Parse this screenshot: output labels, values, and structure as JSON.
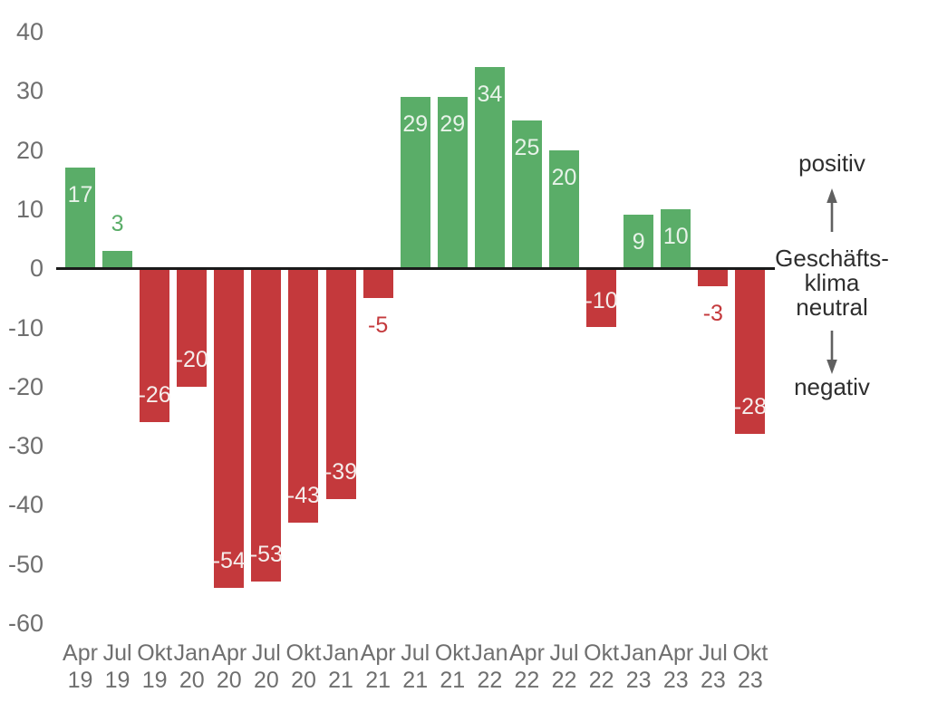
{
  "chart_data": {
    "type": "bar",
    "title": "",
    "xlabel": "",
    "ylabel": "",
    "categories": [
      "Apr 19",
      "Jul 19",
      "Okt 19",
      "Jan 20",
      "Apr 20",
      "Jul 20",
      "Okt 20",
      "Jan 21",
      "Apr 21",
      "Jul 21",
      "Okt 21",
      "Jan 22",
      "Apr 22",
      "Jul 22",
      "Okt 22",
      "Jan 23",
      "Apr 23",
      "Jul 23",
      "Okt 23"
    ],
    "values": [
      17,
      3,
      -26,
      -20,
      -54,
      -53,
      -43,
      -39,
      -5,
      29,
      29,
      34,
      25,
      20,
      -10,
      9,
      10,
      -3,
      -28
    ],
    "ylim": [
      -60,
      40
    ],
    "yticks": [
      40,
      30,
      20,
      10,
      0,
      -10,
      -20,
      -30,
      -40,
      -50,
      -60
    ],
    "grid": false,
    "legend_position": "none",
    "colors": {
      "positive_bar": "#5aad68",
      "negative_bar": "#c4393c",
      "positive_label_inside": "#e8f3e9",
      "negative_label_inside": "#f5edeb",
      "axis_text": "#6f6f6f",
      "axis_line": "#1a1a1a",
      "annotation_text": "#2e2e2e",
      "arrow": "#606060"
    }
  },
  "annotation": {
    "positive": "positiv",
    "scale_lines": [
      "Geschäfts-",
      "klima",
      "neutral"
    ],
    "negative": "negativ",
    "up_arrow": "up-arrow",
    "down_arrow": "down-arrow"
  }
}
